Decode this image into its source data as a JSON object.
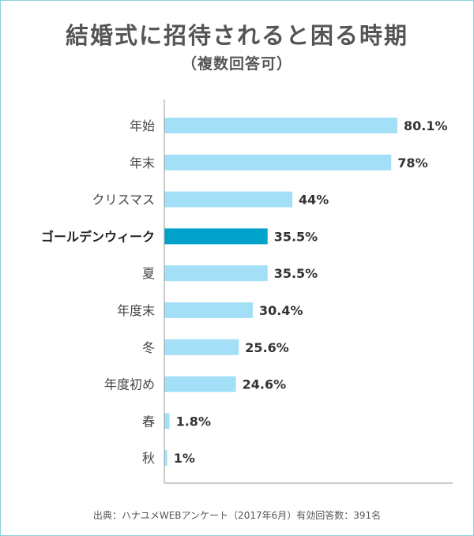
{
  "title": "結婚式に招待されると困る時期",
  "subtitle": "（複数回答可）",
  "source": "出典：ハナユメWEBアンケート（2017年6月）有効回答数：391名",
  "colors": {
    "bar": "#a3e0f7",
    "highlight_bar": "#00a2c9",
    "axis": "#9a9a9a",
    "border": "#8ccfe0"
  },
  "chart_data": {
    "type": "bar",
    "orientation": "horizontal",
    "title": "結婚式に招待されると困る時期",
    "subtitle": "（複数回答可）",
    "categories": [
      "年始",
      "年末",
      "クリスマス",
      "ゴールデンウィーク",
      "夏",
      "年度末",
      "冬",
      "年度初め",
      "春",
      "秋"
    ],
    "values": [
      80.1,
      78,
      44,
      35.5,
      35.5,
      30.4,
      25.6,
      24.6,
      1.8,
      1
    ],
    "value_labels": [
      "80.1%",
      "78%",
      "44%",
      "35.5%",
      "35.5%",
      "30.4%",
      "25.6%",
      "24.6%",
      "1.8%",
      "1%"
    ],
    "highlight": "ゴールデンウィーク",
    "xlim": [
      0,
      100
    ],
    "grid": false,
    "legend": "none"
  }
}
